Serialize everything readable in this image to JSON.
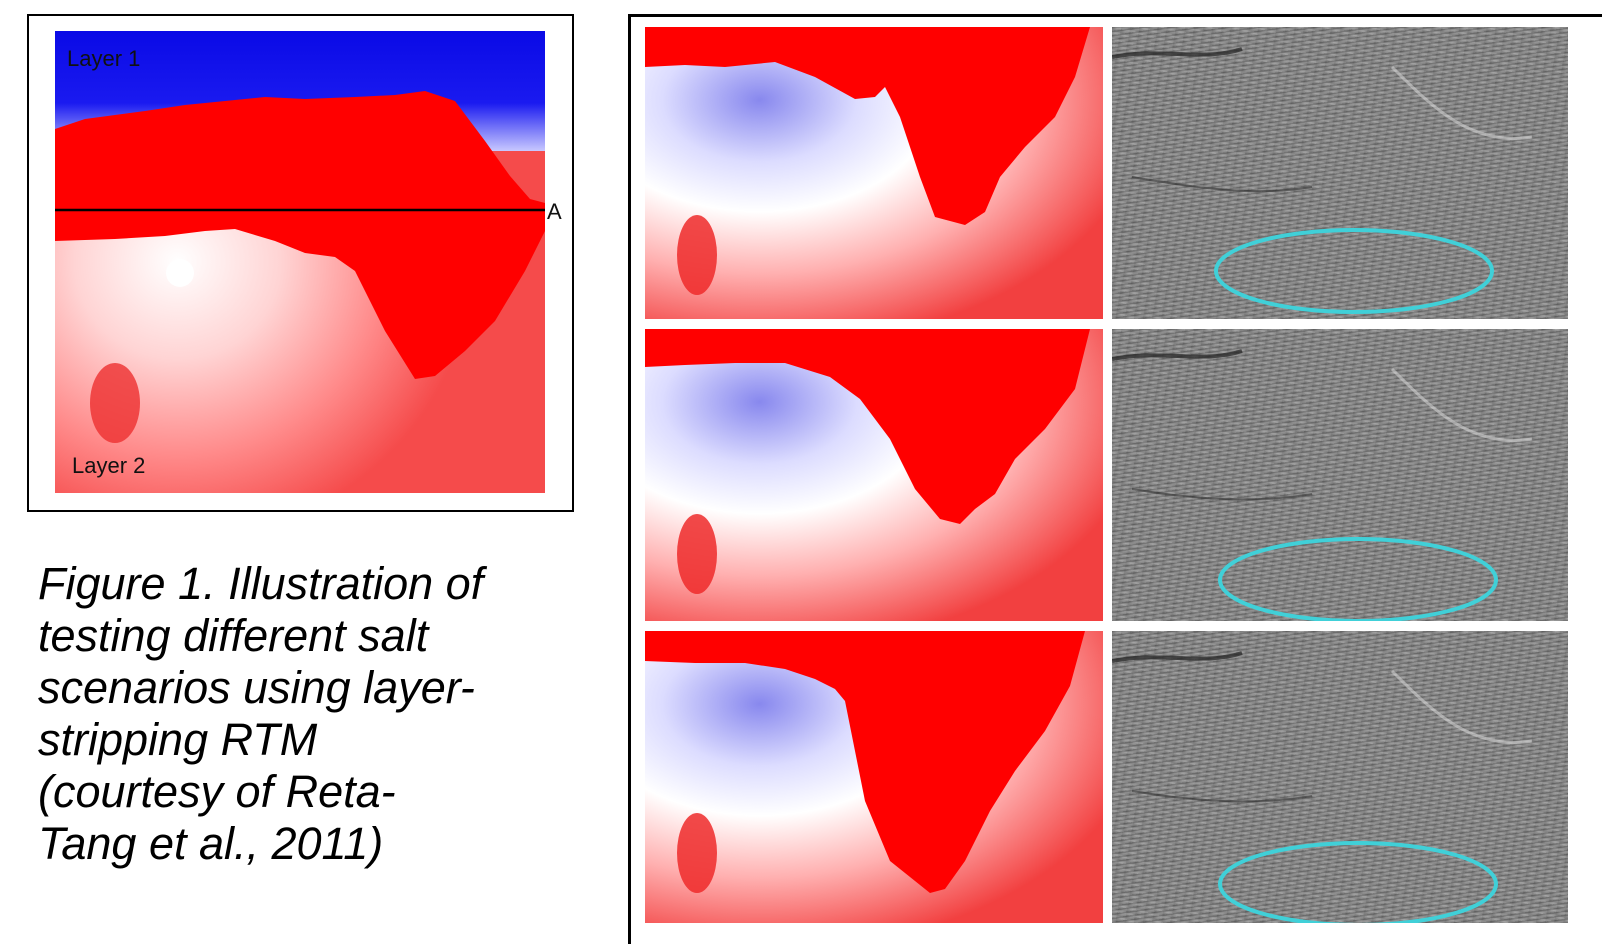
{
  "model": {
    "layer1_label": "Layer 1",
    "layer2_label": "Layer 2",
    "line_marker": "A"
  },
  "caption": {
    "lines": [
      "Figure 1. Illustration of",
      "testing  different salt",
      "scenarios using layer-",
      "stripping RTM",
      "(courtesy of Reta-",
      "Tang et al., 2011)"
    ]
  },
  "colors": {
    "salt": "#ff0000",
    "water": "#1010e0",
    "highlight_ellipse": "#40d0d8",
    "frame": "#000000"
  },
  "scenarios": [
    {
      "velocity_panel": "scenario-1-velocity-model",
      "image_panel": "scenario-1-rtm-image"
    },
    {
      "velocity_panel": "scenario-2-velocity-model",
      "image_panel": "scenario-2-rtm-image"
    },
    {
      "velocity_panel": "scenario-3-velocity-model",
      "image_panel": "scenario-3-rtm-image"
    }
  ]
}
